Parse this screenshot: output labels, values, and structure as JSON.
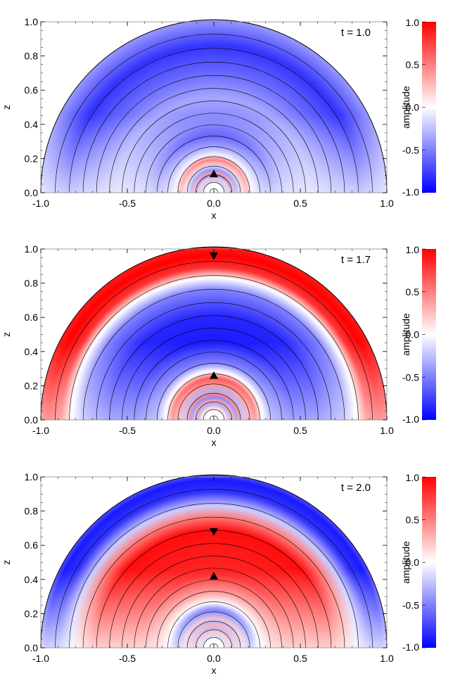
{
  "colors": {
    "negative": "#0000ff",
    "zero": "#ffffff",
    "positive": "#ff0000",
    "contour": "#000000"
  },
  "chart_data": [
    {
      "type": "heatmap",
      "annotation": "t = 1.0",
      "xlabel": "x",
      "ylabel": "z",
      "xlim": [
        -1.0,
        1.0
      ],
      "ylim": [
        0.0,
        1.0
      ],
      "x_ticks": [
        "-1.0",
        "-0.5",
        "0.0",
        "0.5",
        "1.0"
      ],
      "y_ticks": [
        "0.0",
        "0.2",
        "0.4",
        "0.6",
        "0.8",
        "1.0"
      ],
      "colorbar": {
        "label": "amplitude",
        "range": [
          -1.0,
          1.0
        ],
        "ticks": [
          "-1.0",
          "-0.5",
          "0.0",
          "0.5",
          "1.0"
        ]
      },
      "markers": [
        {
          "type": "triangle-up",
          "x": 0.0,
          "z": 0.11
        }
      ],
      "radial_profile": [
        [
          0.05,
          0.0
        ],
        [
          0.07,
          -0.6
        ],
        [
          0.085,
          0.6
        ],
        [
          0.1,
          -1.0
        ],
        [
          0.115,
          0.9
        ],
        [
          0.13,
          -0.9
        ],
        [
          0.15,
          -0.4
        ],
        [
          0.17,
          0.5
        ],
        [
          0.19,
          0.85
        ],
        [
          0.22,
          -0.1
        ],
        [
          0.27,
          -0.55
        ],
        [
          0.33,
          -0.75
        ],
        [
          0.4,
          -0.5
        ],
        [
          0.55,
          -0.35
        ],
        [
          0.7,
          -0.6
        ],
        [
          0.85,
          -0.8
        ],
        [
          1.0,
          -0.4
        ]
      ],
      "angular_falloff": 0.75
    },
    {
      "type": "heatmap",
      "annotation": "t = 1.7",
      "xlabel": "x",
      "ylabel": "z",
      "xlim": [
        -1.0,
        1.0
      ],
      "ylim": [
        0.0,
        1.0
      ],
      "x_ticks": [
        "-1.0",
        "-0.5",
        "0.0",
        "0.5",
        "1.0"
      ],
      "y_ticks": [
        "0.0",
        "0.2",
        "0.4",
        "0.6",
        "0.8",
        "1.0"
      ],
      "colorbar": {
        "label": "amplitude",
        "range": [
          -1.0,
          1.0
        ],
        "ticks": [
          "-1.0",
          "-0.5",
          "0.0",
          "0.5",
          "1.0"
        ]
      },
      "markers": [
        {
          "type": "triangle-up",
          "x": 0.0,
          "z": 0.26
        },
        {
          "type": "triangle-down",
          "x": 0.0,
          "z": 0.96
        }
      ],
      "radial_profile": [
        [
          0.05,
          0.0
        ],
        [
          0.07,
          0.3
        ],
        [
          0.09,
          -0.6
        ],
        [
          0.11,
          0.7
        ],
        [
          0.13,
          -0.8
        ],
        [
          0.15,
          0.8
        ],
        [
          0.17,
          -0.5
        ],
        [
          0.2,
          0.6
        ],
        [
          0.24,
          0.9
        ],
        [
          0.28,
          0.0
        ],
        [
          0.33,
          -0.6
        ],
        [
          0.45,
          -0.9
        ],
        [
          0.6,
          -0.85
        ],
        [
          0.75,
          -0.5
        ],
        [
          0.82,
          0.0
        ],
        [
          0.88,
          0.8
        ],
        [
          0.95,
          1.0
        ],
        [
          1.0,
          0.9
        ]
      ],
      "angular_falloff": 0.6
    },
    {
      "type": "heatmap",
      "annotation": "t = 2.0",
      "xlabel": "x",
      "ylabel": "z",
      "xlim": [
        -1.0,
        1.0
      ],
      "ylim": [
        0.0,
        1.0
      ],
      "x_ticks": [
        "-1.0",
        "-0.5",
        "0.0",
        "0.5",
        "1.0"
      ],
      "y_ticks": [
        "0.0",
        "0.2",
        "0.4",
        "0.6",
        "0.8",
        "1.0"
      ],
      "colorbar": {
        "label": "amplitude",
        "range": [
          -1.0,
          1.0
        ],
        "ticks": [
          "-1.0",
          "-0.5",
          "0.0",
          "0.5",
          "1.0"
        ]
      },
      "markers": [
        {
          "type": "triangle-up",
          "x": 0.0,
          "z": 0.42
        },
        {
          "type": "triangle-down",
          "x": 0.0,
          "z": 0.68
        }
      ],
      "radial_profile": [
        [
          0.05,
          0.0
        ],
        [
          0.07,
          -0.5
        ],
        [
          0.09,
          0.6
        ],
        [
          0.11,
          -0.7
        ],
        [
          0.13,
          0.7
        ],
        [
          0.15,
          -0.6
        ],
        [
          0.17,
          0.5
        ],
        [
          0.19,
          -0.6
        ],
        [
          0.22,
          -0.8
        ],
        [
          0.26,
          0.0
        ],
        [
          0.32,
          0.5
        ],
        [
          0.42,
          0.85
        ],
        [
          0.55,
          0.9
        ],
        [
          0.68,
          0.95
        ],
        [
          0.76,
          0.5
        ],
        [
          0.82,
          -0.2
        ],
        [
          0.9,
          -0.8
        ],
        [
          0.97,
          -0.9
        ],
        [
          1.0,
          -0.7
        ]
      ],
      "angular_falloff": 0.8
    }
  ]
}
